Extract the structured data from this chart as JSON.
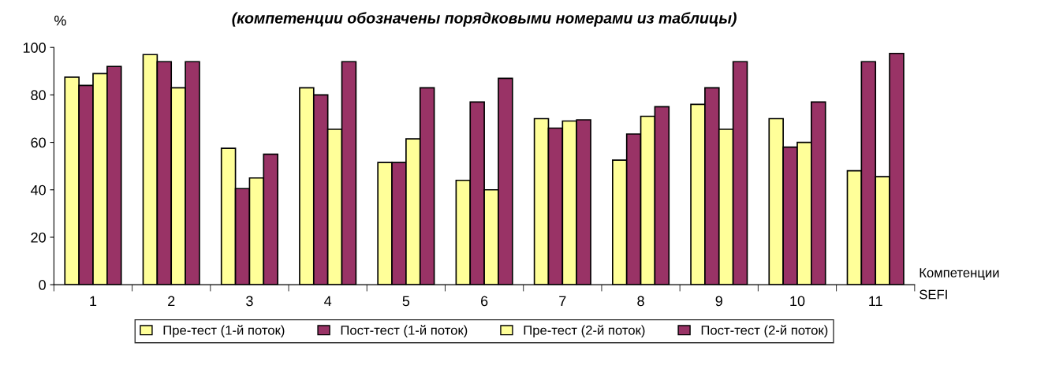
{
  "chart_data": {
    "type": "bar",
    "title": "(компетенции обозначены порядковыми номерами из таблицы)",
    "ylabel": "%",
    "xlabel": "Компетенции\nSEFI",
    "categories": [
      "1",
      "2",
      "3",
      "4",
      "5",
      "6",
      "7",
      "8",
      "9",
      "10",
      "11"
    ],
    "series": [
      {
        "name": "Пре-тест (1-й поток)",
        "color": "#ffff99",
        "values": [
          87.5,
          97,
          57.5,
          83,
          51.5,
          44,
          70,
          52.5,
          76,
          70,
          48
        ]
      },
      {
        "name": "Пост-тест (1-й поток)",
        "color": "#993366",
        "values": [
          84,
          94,
          40.5,
          80,
          51.5,
          77,
          66,
          63.5,
          83,
          58,
          94
        ]
      },
      {
        "name": "Пре-тест (2-й поток)",
        "color": "#ffff99",
        "values": [
          89,
          83,
          45,
          65.5,
          61.5,
          40,
          69,
          71,
          65.5,
          60,
          45.5
        ]
      },
      {
        "name": "Пост-тест (2-й поток)",
        "color": "#993366",
        "values": [
          92,
          94,
          55,
          94,
          83,
          87,
          69.5,
          75,
          94,
          77,
          97.5
        ]
      }
    ],
    "ylim": [
      0,
      100
    ],
    "yticks": [
      0,
      20,
      40,
      60,
      80,
      100
    ],
    "grid": false,
    "legend": "bottom"
  }
}
